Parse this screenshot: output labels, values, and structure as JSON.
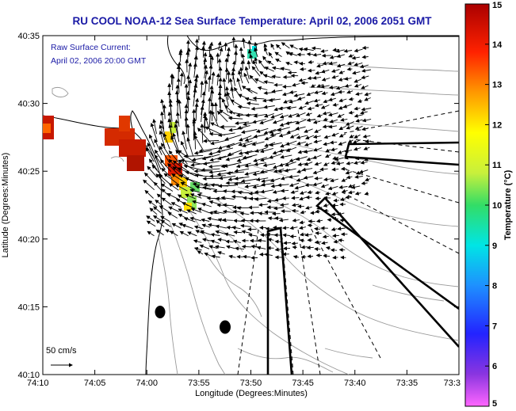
{
  "title": "RU COOL  NOAA-12  Sea Surface Temperature:  April 02, 2006 2051 GMT",
  "inset": {
    "line1": "Raw Surface Current:",
    "line2": "April 02, 2006 20:00 GMT"
  },
  "scale_label": "50 cm/s",
  "x_axis": {
    "label": "Longitude (Degrees:Minutes)",
    "ticks": [
      "74:10",
      "74:05",
      "74:00",
      "73:55",
      "73:50",
      "73:45",
      "73:40",
      "73:35",
      "73:3"
    ]
  },
  "y_axis": {
    "label": "Latitude (Degrees:Minutes)",
    "ticks": [
      "40:35",
      "40:30",
      "40:25",
      "40:20",
      "40:15",
      "40:10"
    ]
  },
  "colorbar": {
    "label": "Temperature (°C)",
    "ticks": [
      "15",
      "14",
      "13",
      "12",
      "11",
      "10",
      "9",
      "8",
      "7",
      "6",
      "5"
    ],
    "colors": [
      "#ff66ff",
      "#8a35e0",
      "#2323ff",
      "#1e90ff",
      "#00e5e5",
      "#33dd66",
      "#c8f03c",
      "#ffff00",
      "#ff9900",
      "#ff2200",
      "#aa0000"
    ]
  },
  "colors": {
    "title": "#1a1aa6",
    "land": "#ffffff",
    "water": "#ffffff"
  }
}
